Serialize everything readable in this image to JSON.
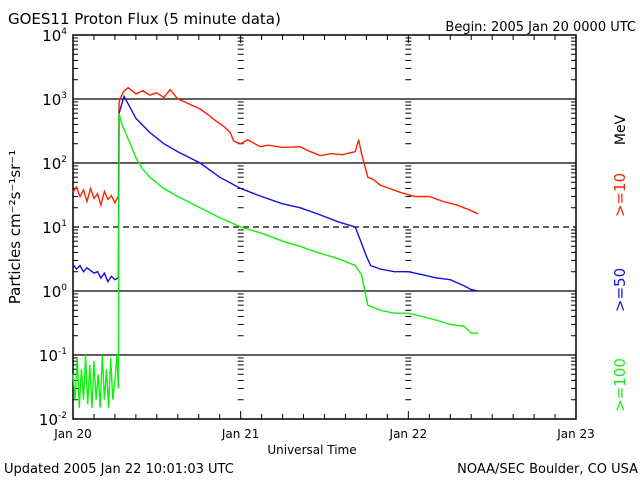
{
  "chart_data": {
    "type": "line",
    "title": "GOES11 Proton Flux (5 minute data)",
    "begin_label": "Begin: 2005 Jan 20 0000 UTC",
    "xlabel": "Universal Time",
    "ylabel": "Particles cm⁻²s⁻¹sr⁻¹",
    "x_unit": "hours since 2005 Jan 20 0000 UTC",
    "xlim": [
      0,
      72
    ],
    "x_ticks": [
      {
        "value": 0,
        "label": "Jan 20"
      },
      {
        "value": 24,
        "label": "Jan 21"
      },
      {
        "value": 48,
        "label": "Jan 22"
      },
      {
        "value": 72,
        "label": "Jan 23"
      }
    ],
    "yscale": "log",
    "ylim": [
      0.01,
      10000
    ],
    "y_ticks": [
      {
        "value": 10000,
        "base": "10",
        "exp": "4"
      },
      {
        "value": 1000,
        "base": "10",
        "exp": "3"
      },
      {
        "value": 100,
        "base": "10",
        "exp": "2"
      },
      {
        "value": 10,
        "base": "10",
        "exp": "1"
      },
      {
        "value": 1,
        "base": "10",
        "exp": "0"
      },
      {
        "value": 0.1,
        "base": "10",
        "exp": "-1"
      },
      {
        "value": 0.01,
        "base": "10",
        "exp": "-2"
      }
    ],
    "threshold_line": 10,
    "unit_label": "MeV",
    "series": [
      {
        "name": ">=10",
        "color": "#ff2000",
        "x": [
          0,
          0.5,
          1,
          1.5,
          2,
          2.5,
          3,
          3.5,
          4,
          4.5,
          5,
          5.5,
          6,
          6.5,
          6.6,
          7.2,
          7.9,
          9,
          10,
          11,
          12,
          13,
          13.9,
          15,
          16,
          17,
          18.2,
          19.5,
          20.5,
          21.5,
          22.5,
          23,
          24,
          25,
          26.8,
          28,
          30,
          32.5,
          34,
          35.4,
          37,
          38.5,
          40.4,
          40.9,
          41.3,
          42.2,
          43,
          44,
          46.8,
          48,
          49,
          51,
          53,
          55,
          57,
          58
        ],
        "y": [
          35,
          42,
          30,
          38,
          25,
          40,
          28,
          33,
          22,
          36,
          27,
          31,
          24,
          30,
          900,
          1300,
          1500,
          1200,
          1350,
          1150,
          1250,
          1050,
          1400,
          1000,
          900,
          800,
          700,
          550,
          450,
          380,
          300,
          220,
          200,
          230,
          180,
          190,
          175,
          180,
          150,
          130,
          140,
          135,
          150,
          230,
          140,
          60,
          55,
          45,
          35,
          32,
          30,
          30,
          25,
          22,
          18,
          16
        ]
      },
      {
        "name": ">=50",
        "color": "#1010e0",
        "x": [
          0,
          0.5,
          1,
          1.5,
          2,
          2.5,
          3,
          3.5,
          4,
          4.5,
          5,
          5.5,
          6,
          6.5,
          6.6,
          7.3,
          8,
          9,
          11,
          13,
          15,
          18.2,
          21,
          24,
          27,
          30,
          32.5,
          35,
          38,
          40.4,
          41.2,
          42,
          42.6,
          44,
          46,
          48,
          50,
          52,
          54,
          56,
          57,
          58
        ],
        "y": [
          2.6,
          2.2,
          2.5,
          2.0,
          2.3,
          2.1,
          1.9,
          2.0,
          1.6,
          1.9,
          1.4,
          1.7,
          1.5,
          1.6,
          600,
          1100,
          800,
          500,
          300,
          200,
          150,
          100,
          60,
          40,
          30,
          23,
          20,
          16,
          12,
          10,
          6,
          3.5,
          2.5,
          2.2,
          2.0,
          2.0,
          1.8,
          1.6,
          1.5,
          1.2,
          1.05,
          1.0
        ]
      },
      {
        "name": ">=100",
        "color": "#10f010",
        "x": [
          0,
          0.3,
          0.6,
          0.9,
          1.2,
          1.5,
          1.8,
          2.1,
          2.4,
          2.7,
          3,
          3.3,
          3.6,
          3.9,
          4.2,
          4.5,
          4.8,
          5.1,
          5.4,
          5.7,
          6,
          6.3,
          6.5,
          6.6,
          7,
          7.5,
          8.2,
          9,
          10,
          11,
          13,
          15,
          18.2,
          21,
          24,
          27,
          30,
          32.5,
          35,
          38,
          40.4,
          41.3,
          42.2,
          43,
          44,
          46,
          48,
          50,
          52,
          54,
          56,
          57,
          58
        ],
        "y": [
          0.05,
          0.02,
          0.09,
          0.015,
          0.06,
          0.02,
          0.1,
          0.017,
          0.07,
          0.015,
          0.08,
          0.02,
          0.05,
          0.015,
          0.1,
          0.02,
          0.06,
          0.015,
          0.09,
          0.02,
          0.04,
          0.1,
          0.03,
          600,
          400,
          300,
          200,
          120,
          80,
          60,
          40,
          30,
          20,
          14,
          10,
          8,
          6,
          5,
          4,
          3.2,
          2.5,
          1.8,
          0.6,
          0.55,
          0.5,
          0.45,
          0.45,
          0.4,
          0.35,
          0.3,
          0.28,
          0.22,
          0.22
        ]
      }
    ]
  },
  "footer": {
    "updated": "Updated 2005 Jan 22 10:01:03 UTC",
    "credit": "NOAA/SEC Boulder, CO USA"
  }
}
